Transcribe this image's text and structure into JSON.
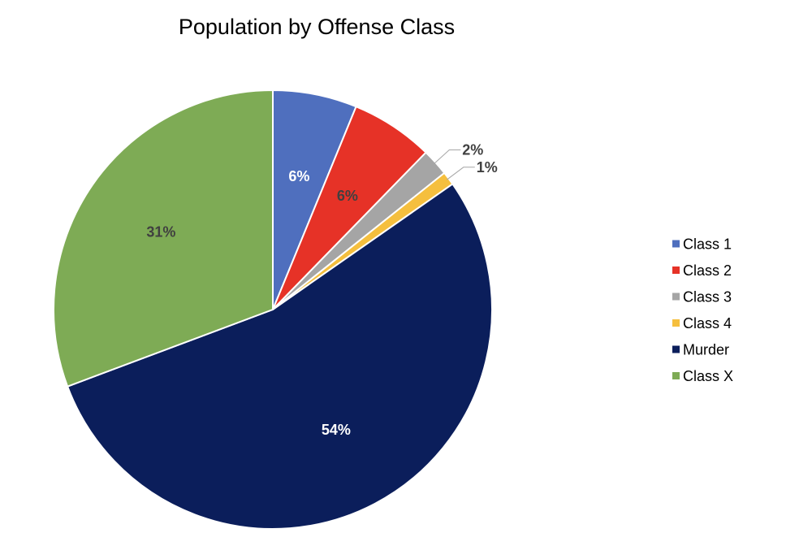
{
  "chart_data": {
    "type": "pie",
    "title": "Population by Offense Class",
    "start_angle_deg": 0,
    "direction": "clockwise",
    "legend_position": "right",
    "slices": [
      {
        "name": "Class 1",
        "value": 6.2,
        "label": "6%",
        "color": "#4F6FBE",
        "label_color": "#ffffff",
        "label_placement": "inside"
      },
      {
        "name": "Class 2",
        "value": 6.1,
        "label": "6%",
        "color": "#E63227",
        "label_color": "#404040",
        "label_placement": "inside"
      },
      {
        "name": "Class 3",
        "value": 2.0,
        "label": "2%",
        "color": "#A5A5A5",
        "label_color": "#404040",
        "label_placement": "outside"
      },
      {
        "name": "Class 4",
        "value": 1.0,
        "label": "1%",
        "color": "#F5BF3E",
        "label_color": "#404040",
        "label_placement": "outside"
      },
      {
        "name": "Murder",
        "value": 54.0,
        "label": "54%",
        "color": "#0B1E5B",
        "label_color": "#ffffff",
        "label_placement": "inside"
      },
      {
        "name": "Class X",
        "value": 30.7,
        "label": "31%",
        "color": "#7EAB55",
        "label_color": "#404040",
        "label_placement": "inside"
      }
    ]
  }
}
